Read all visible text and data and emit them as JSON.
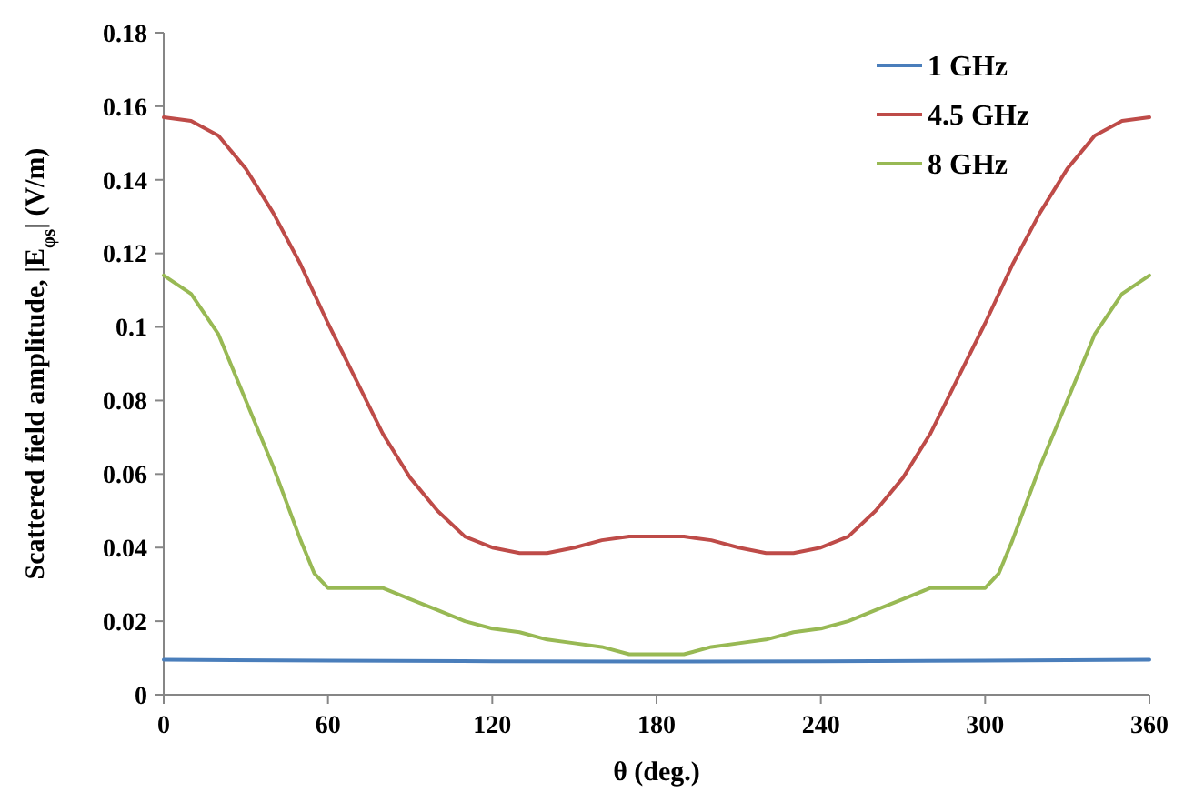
{
  "chart_data": {
    "type": "line",
    "xlabel": "θ (deg.)",
    "ylabel": "Scattered field amplitude, |E$_{φs}$| (V/m)",
    "xlim": [
      0,
      360
    ],
    "xticks": [
      0,
      60,
      120,
      180,
      240,
      300,
      360
    ],
    "ylim": [
      0,
      0.18
    ],
    "yticks": [
      0,
      0.02,
      0.04,
      0.06,
      0.08,
      0.1,
      0.12,
      0.14,
      0.16,
      0.18
    ],
    "grid": false,
    "legend": "top right",
    "marker": "none",
    "line_style": "solid",
    "series": [
      {
        "name": "1 GHz",
        "color": "#4a7ebb",
        "x": [
          0,
          60,
          120,
          180,
          240,
          300,
          360
        ],
        "values": [
          0.0095,
          0.0093,
          0.0091,
          0.009,
          0.0091,
          0.0093,
          0.0095
        ]
      },
      {
        "name": "4.5 GHz",
        "color": "#be4b48",
        "x": [
          0,
          10,
          20,
          30,
          40,
          50,
          60,
          70,
          80,
          90,
          100,
          110,
          120,
          130,
          140,
          150,
          160,
          170,
          180,
          190,
          200,
          210,
          220,
          230,
          240,
          250,
          260,
          270,
          280,
          290,
          300,
          310,
          320,
          330,
          340,
          350,
          360
        ],
        "values": [
          0.157,
          0.156,
          0.152,
          0.143,
          0.131,
          0.117,
          0.101,
          0.086,
          0.071,
          0.059,
          0.05,
          0.043,
          0.04,
          0.0385,
          0.0385,
          0.04,
          0.042,
          0.043,
          0.043,
          0.043,
          0.042,
          0.04,
          0.0385,
          0.0385,
          0.04,
          0.043,
          0.05,
          0.059,
          0.071,
          0.086,
          0.101,
          0.117,
          0.131,
          0.143,
          0.152,
          0.156,
          0.157
        ]
      },
      {
        "name": "8 GHz",
        "color": "#98b954",
        "x": [
          0,
          10,
          20,
          30,
          40,
          50,
          55,
          60,
          70,
          80,
          90,
          100,
          110,
          120,
          130,
          140,
          150,
          160,
          170,
          180,
          190,
          200,
          210,
          220,
          230,
          240,
          250,
          260,
          270,
          280,
          290,
          300,
          305,
          310,
          320,
          330,
          340,
          350,
          360
        ],
        "values": [
          0.114,
          0.109,
          0.098,
          0.08,
          0.062,
          0.042,
          0.033,
          0.029,
          0.029,
          0.029,
          0.026,
          0.023,
          0.02,
          0.018,
          0.017,
          0.015,
          0.014,
          0.013,
          0.011,
          0.011,
          0.011,
          0.013,
          0.014,
          0.015,
          0.017,
          0.018,
          0.02,
          0.023,
          0.026,
          0.029,
          0.029,
          0.029,
          0.033,
          0.042,
          0.062,
          0.08,
          0.098,
          0.109,
          0.114
        ]
      }
    ]
  }
}
